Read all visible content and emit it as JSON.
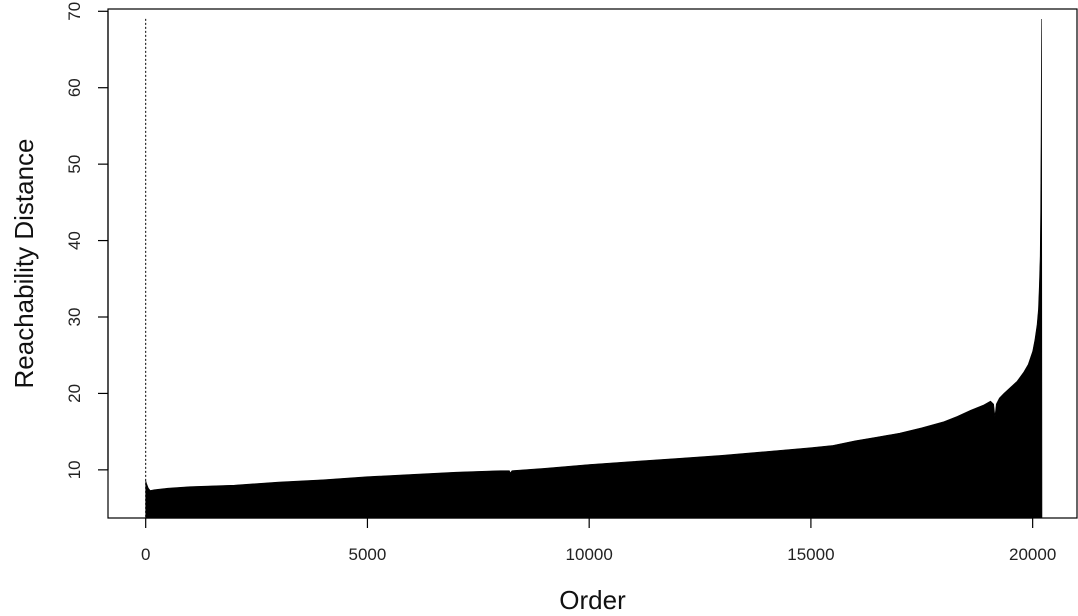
{
  "chart_data": {
    "type": "area",
    "title": "",
    "xlabel": "Order",
    "ylabel": "Reachability Distance",
    "xlim": [
      -850,
      21000
    ],
    "ylim": [
      3.7,
      70.3
    ],
    "x_ticks": [
      0,
      5000,
      10000,
      15000,
      20000
    ],
    "y_ticks": [
      10,
      20,
      30,
      40,
      50,
      60,
      70
    ],
    "grid": false,
    "legend": "none",
    "fill_color": "#000000",
    "background": "#ffffff",
    "undefined_marker": {
      "x": 0,
      "y_top": 69,
      "style": "dotted"
    },
    "series": [
      {
        "x": [
          0,
          20,
          60,
          100,
          200,
          500,
          1000,
          1500,
          2000,
          3000,
          4000,
          5000,
          6000,
          7000,
          8000,
          8200,
          8220,
          8260,
          9000,
          10000,
          11000,
          12000,
          13000,
          14000,
          15000,
          15500,
          16000,
          16500,
          17000,
          17500,
          18000,
          18300,
          18600,
          18900,
          19050,
          19120,
          19150,
          19180,
          19250,
          19350,
          19500,
          19650,
          19800,
          19900,
          20000,
          20050,
          20100,
          20130,
          20150,
          20170,
          20180,
          20190,
          20200,
          20210
        ],
        "values": [
          8.6,
          8.2,
          7.6,
          7.3,
          7.4,
          7.6,
          7.8,
          7.9,
          8.0,
          8.4,
          8.7,
          9.1,
          9.4,
          9.7,
          9.9,
          9.9,
          9.6,
          9.9,
          10.2,
          10.7,
          11.1,
          11.5,
          11.9,
          12.4,
          12.9,
          13.2,
          13.8,
          14.3,
          14.8,
          15.5,
          16.3,
          17.0,
          17.8,
          18.5,
          19.0,
          18.6,
          17.0,
          18.6,
          19.4,
          20.0,
          20.8,
          21.6,
          22.8,
          23.8,
          25.5,
          27.0,
          29.0,
          31.0,
          34.0,
          38.0,
          44.0,
          54.0,
          69.0,
          0
        ]
      }
    ]
  }
}
